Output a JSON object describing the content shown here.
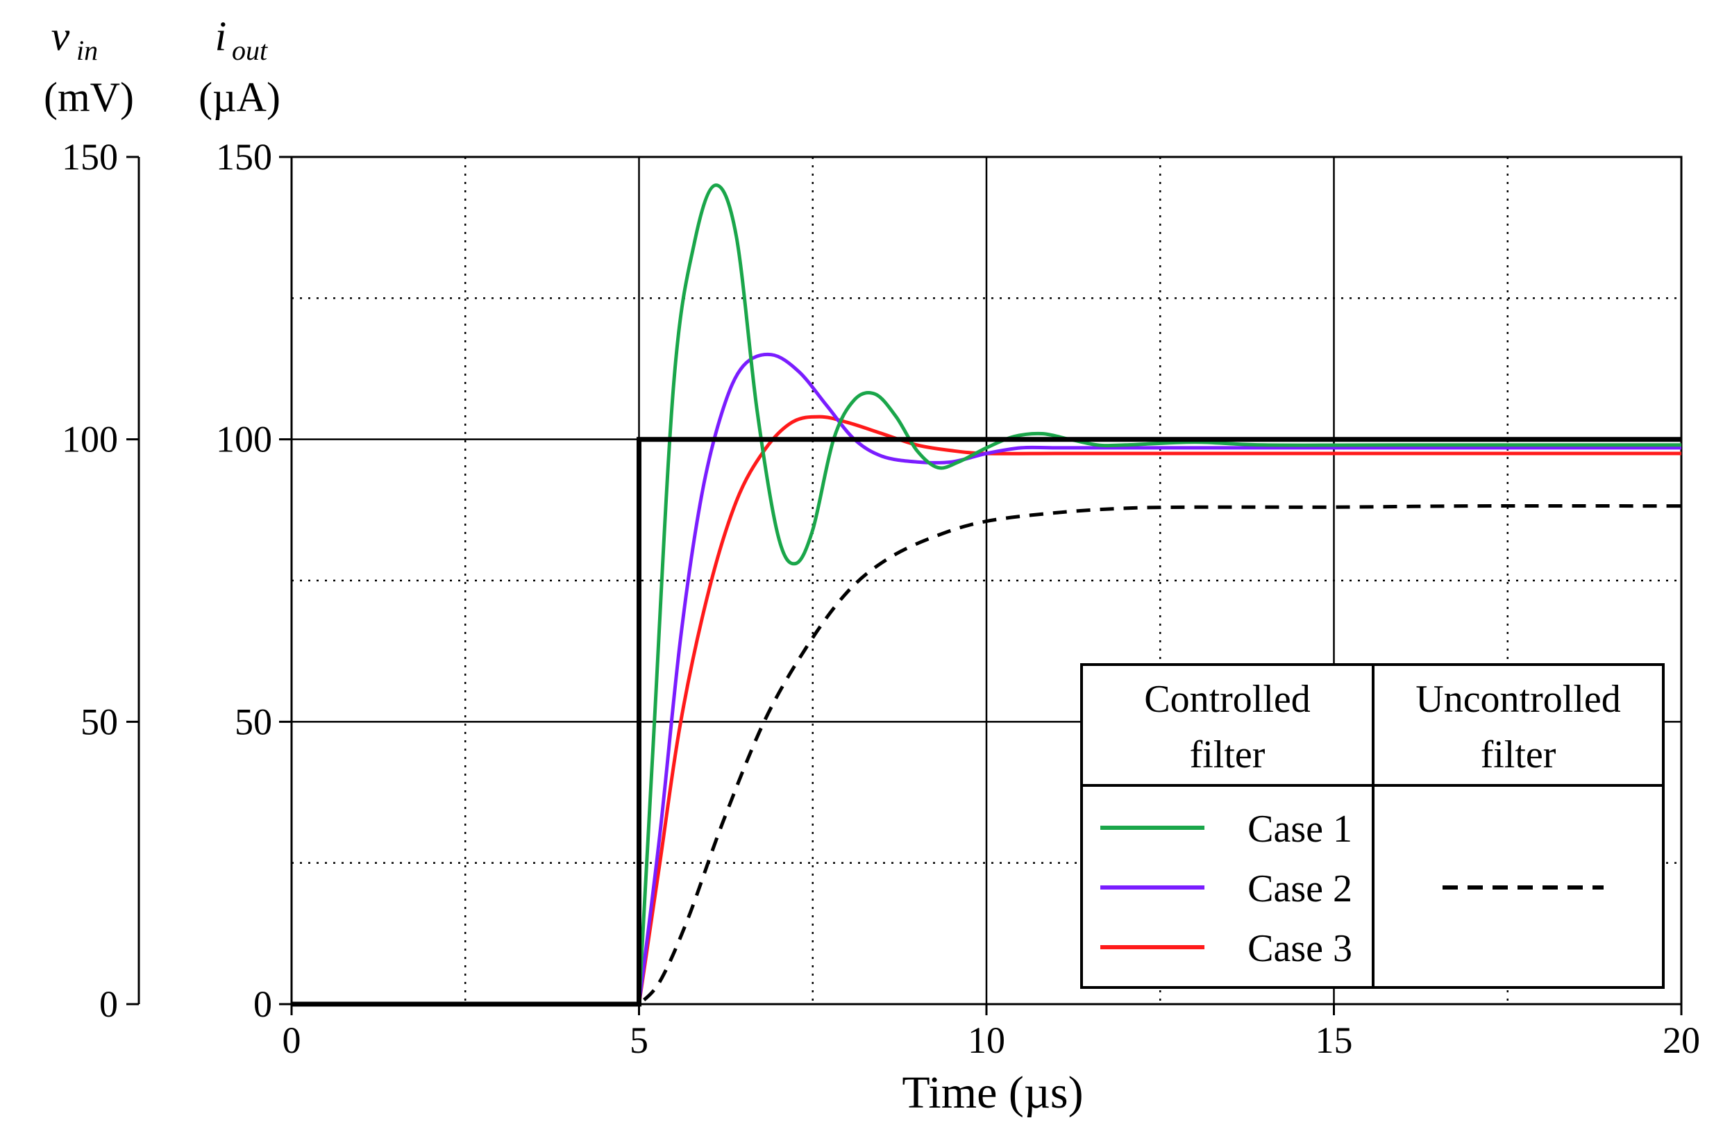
{
  "chart_data": {
    "type": "line",
    "xlabel": "Time (µs)",
    "x_ticks": [
      "0",
      "5",
      "10",
      "15",
      "20"
    ],
    "xlim": [
      0,
      20
    ],
    "y_axes": [
      {
        "label_var": "v",
        "label_sub": "in",
        "label_unit": "(mV)",
        "ylim": [
          0,
          150
        ],
        "ticks": [
          "0",
          "50",
          "100",
          "150"
        ]
      },
      {
        "label_var": "i",
        "label_sub": "out",
        "label_unit": "(µA)",
        "ylim": [
          0,
          150
        ],
        "ticks": [
          "0",
          "50",
          "100",
          "150"
        ]
      }
    ],
    "grid": "major solid, minor dotted",
    "series": [
      {
        "name": "v_in",
        "color": "#000000",
        "style": "solid-thick",
        "x": [
          0,
          5,
          5,
          20
        ],
        "y": [
          0,
          0,
          100,
          100
        ]
      },
      {
        "name": "Case 1",
        "color": "#1aa64a",
        "style": "solid",
        "x": [
          0,
          5,
          5.2,
          5.5,
          5.8,
          6.1,
          6.4,
          6.7,
          7.0,
          7.25,
          7.5,
          7.8,
          8.1,
          8.4,
          8.7,
          9.0,
          9.3,
          9.6,
          10.0,
          10.4,
          10.8,
          11.2,
          11.6,
          12.0,
          13.0,
          14.0,
          16.0,
          20.0
        ],
        "y": [
          0,
          0,
          45,
          110,
          135,
          145,
          136,
          105,
          83,
          78,
          84,
          100,
          107,
          108,
          104,
          98,
          95,
          96,
          98.5,
          100.5,
          101,
          100,
          99,
          99,
          99.5,
          99,
          99,
          99
        ]
      },
      {
        "name": "Case 2",
        "color": "#7a1dff",
        "style": "solid",
        "x": [
          0,
          5,
          5.3,
          5.6,
          5.9,
          6.2,
          6.5,
          6.9,
          7.3,
          7.7,
          8.1,
          8.5,
          9.0,
          9.5,
          10.0,
          10.5,
          11.0,
          12.0,
          14.0,
          20.0
        ],
        "y": [
          0,
          0,
          30,
          65,
          90,
          105,
          113,
          115,
          112,
          106,
          100,
          97,
          96,
          96,
          97.5,
          98.5,
          98.5,
          98.5,
          98.5,
          98.5
        ]
      },
      {
        "name": "Case 3",
        "color": "#ff1a1a",
        "style": "solid",
        "x": [
          0,
          5,
          5.3,
          5.6,
          6.0,
          6.4,
          6.8,
          7.2,
          7.6,
          8.0,
          8.5,
          9.0,
          9.5,
          10.0,
          11.0,
          12.0,
          14.0,
          20.0
        ],
        "y": [
          0,
          0,
          25,
          50,
          73,
          89,
          98,
          103,
          104,
          103,
          101,
          99,
          98,
          97.5,
          97.5,
          97.5,
          97.5,
          97.5
        ]
      },
      {
        "name": "Uncontrolled",
        "color": "#000000",
        "style": "dashed",
        "x": [
          0,
          5,
          5.3,
          5.7,
          6.2,
          6.8,
          7.4,
          8.0,
          8.6,
          9.3,
          10.0,
          11.0,
          12.0,
          13.0,
          15.0,
          17.0,
          20.0
        ],
        "y": [
          0,
          0,
          4,
          15,
          32,
          50,
          63,
          73,
          79,
          83,
          85.5,
          87,
          87.8,
          88,
          88,
          88.2,
          88.2
        ]
      }
    ],
    "legend": {
      "position": "bottom-right",
      "col1_header_line1": "Controlled",
      "col1_header_line2": "filter",
      "col2_header_line1": "Uncontrolled",
      "col2_header_line2": "filter",
      "entries": [
        {
          "label": "Case 1",
          "color": "#1aa64a"
        },
        {
          "label": "Case 2",
          "color": "#7a1dff"
        },
        {
          "label": "Case 3",
          "color": "#ff1a1a"
        }
      ]
    }
  }
}
